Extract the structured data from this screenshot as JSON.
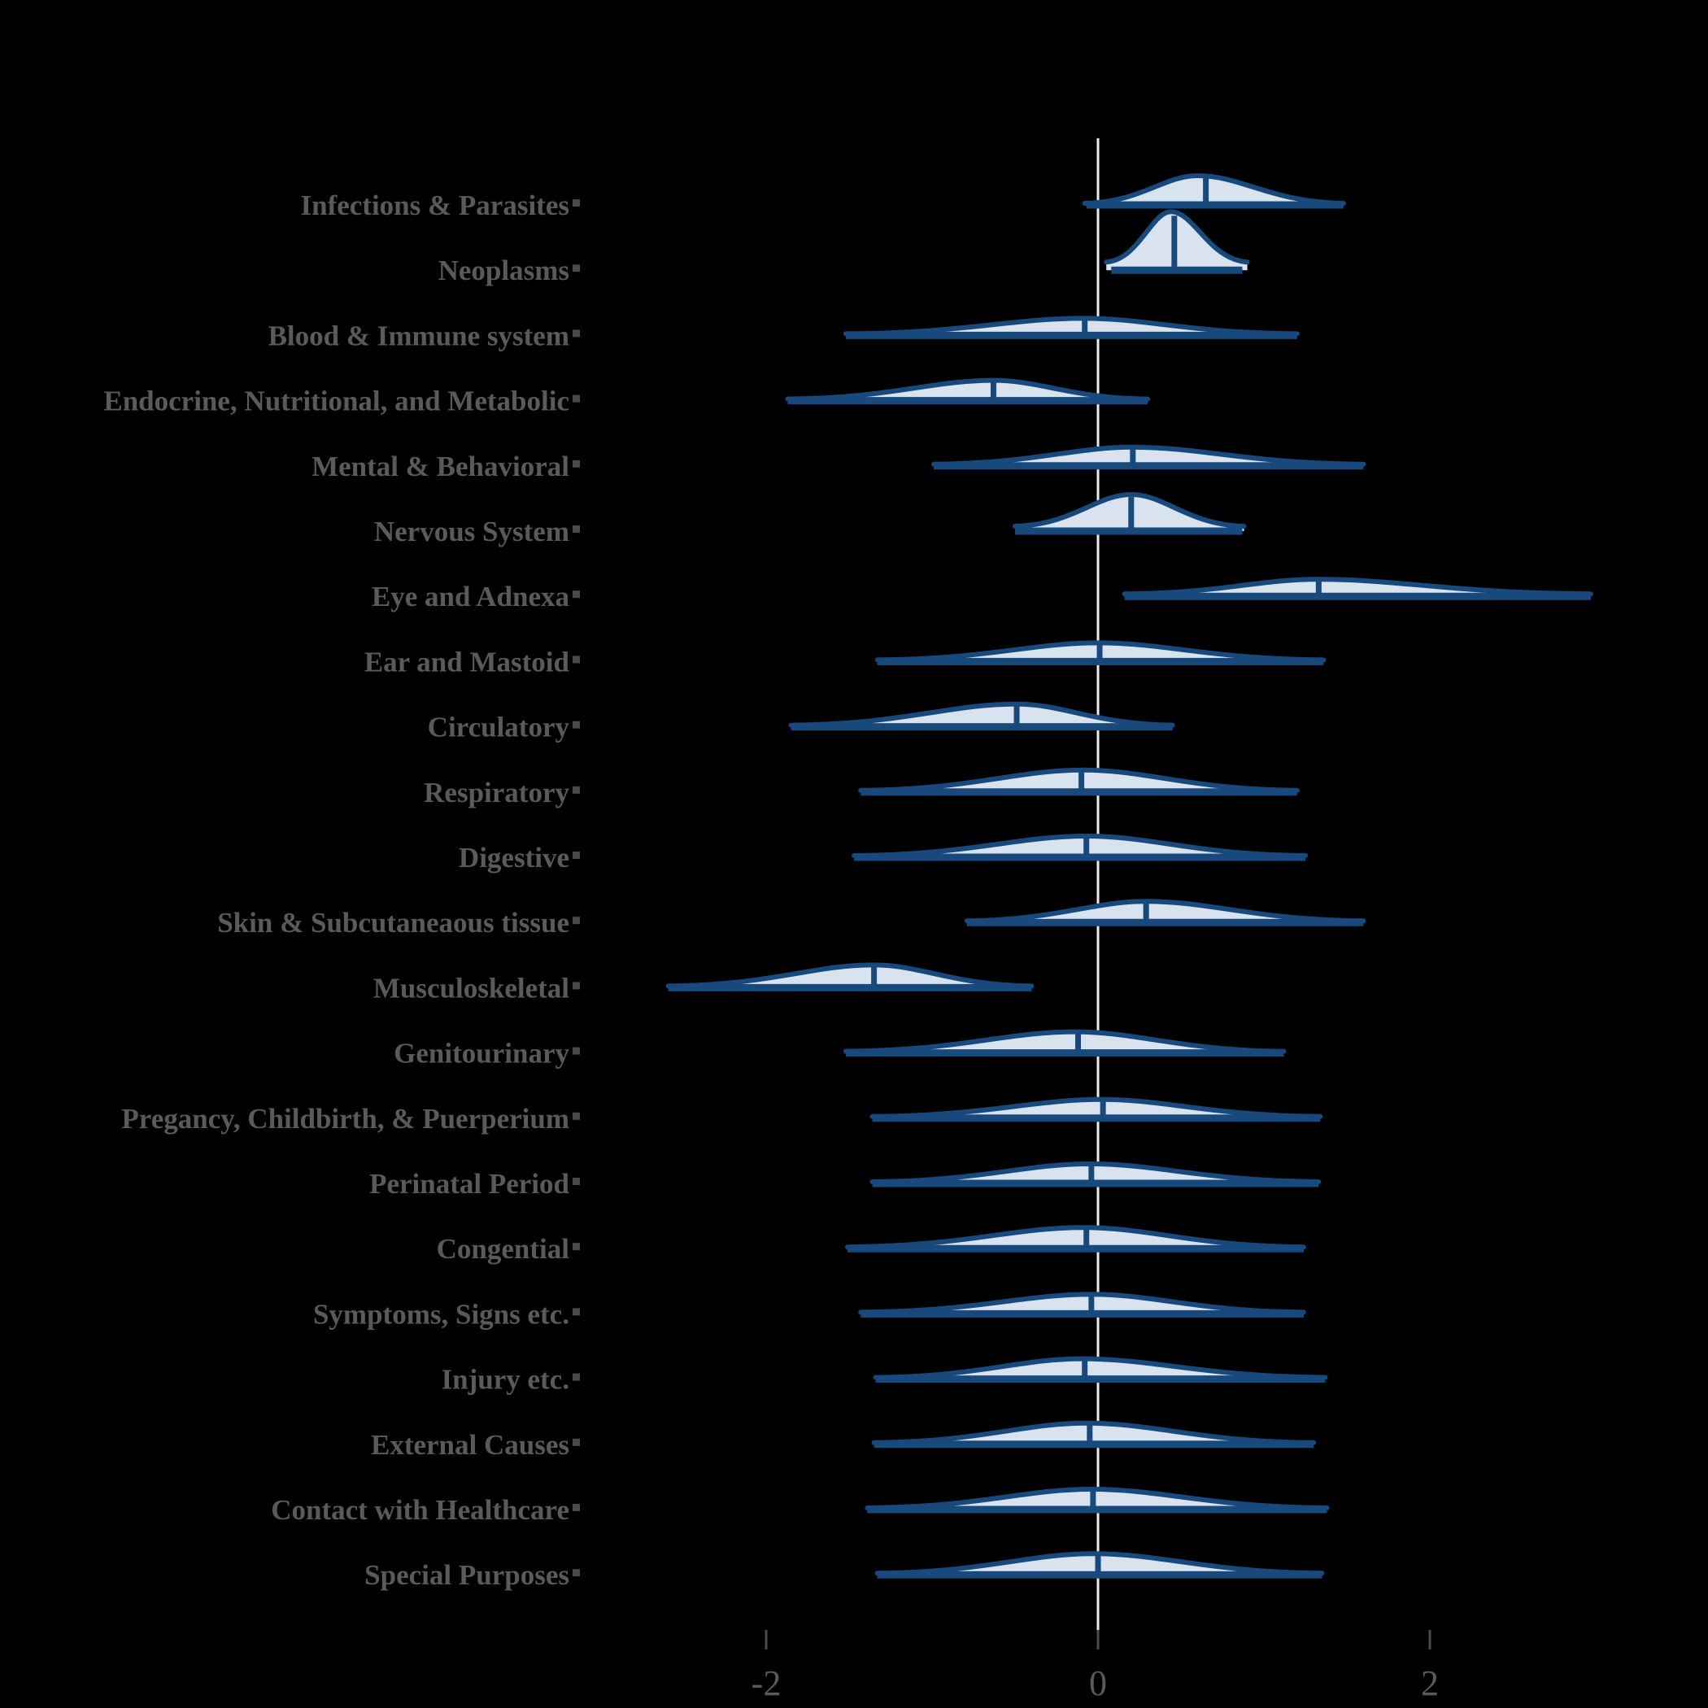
{
  "page": {
    "title": "",
    "background": "#000000"
  },
  "colors": {
    "background": "#000000",
    "violin_fill": "#d9e3ef",
    "violin_stroke": "#17497c",
    "median_line": "#17497c",
    "zero_line": "#ebebeb",
    "label_text": "#5a5a5a",
    "tick_text": "#5a5a5a",
    "tick_mark": "#4d4d4d",
    "category_marker": "#4a4a4a"
  },
  "chart_data": {
    "type": "violin",
    "orientation": "horizontal",
    "title": "",
    "xlabel": "",
    "ylabel": "",
    "x_ticks": [
      "-2",
      "0",
      "2"
    ],
    "x_tick_values": [
      -2,
      0,
      2
    ],
    "x_range": [
      -3.3,
      3.6
    ],
    "zero_reference_line": 0,
    "grid": false,
    "legend": "none",
    "violins": [
      {
        "label": "Infections & Parasites",
        "min": -0.08,
        "mode": 0.6,
        "median": 0.65,
        "max": 1.48,
        "amplitude": 36,
        "tail": 2,
        "bar_min": -0.07,
        "bar_max": 1.48
      },
      {
        "label": "Neoplasms",
        "min": 0.05,
        "mode": 0.44,
        "median": 0.46,
        "max": 0.9,
        "amplitude": 72,
        "tail": 10,
        "bar_min": 0.08,
        "bar_max": 0.87
      },
      {
        "label": "Blood & Immune system",
        "min": -1.52,
        "mode": -0.09,
        "median": -0.08,
        "max": 1.2,
        "amplitude": 21,
        "tail": 2
      },
      {
        "label": "Endocrine, Nutritional, and Metabolic",
        "min": -1.87,
        "mode": -0.63,
        "median": -0.63,
        "max": 0.3,
        "amplitude": 25,
        "tail": 2
      },
      {
        "label": "Mental & Behavioral",
        "min": -0.99,
        "mode": 0.21,
        "median": 0.21,
        "max": 1.6,
        "amplitude": 23,
        "tail": 2
      },
      {
        "label": "Nervous System",
        "min": -0.5,
        "mode": 0.2,
        "median": 0.2,
        "max": 0.88,
        "amplitude": 45,
        "tail": 6,
        "bar_min": -0.5,
        "bar_max": 0.87
      },
      {
        "label": "Eye and Adnexa",
        "min": 0.16,
        "mode": 1.32,
        "median": 1.33,
        "max": 2.97,
        "amplitude": 21,
        "tail": 3
      },
      {
        "label": "Ear and Mastoid",
        "min": -1.33,
        "mode": 0.0,
        "median": 0.01,
        "max": 1.36,
        "amplitude": 23,
        "tail": 2
      },
      {
        "label": "Circulatory",
        "min": -1.85,
        "mode": -0.49,
        "median": -0.49,
        "max": 0.45,
        "amplitude": 28,
        "tail": 2
      },
      {
        "label": "Respiratory",
        "min": -1.43,
        "mode": -0.09,
        "median": -0.1,
        "max": 1.2,
        "amplitude": 27,
        "tail": 2
      },
      {
        "label": "Digestive",
        "min": -1.47,
        "mode": -0.07,
        "median": -0.07,
        "max": 1.25,
        "amplitude": 26,
        "tail": 2
      },
      {
        "label": "Skin & Subcutaneaous tissue",
        "min": -0.79,
        "mode": 0.29,
        "median": 0.29,
        "max": 1.6,
        "amplitude": 26,
        "tail": 2
      },
      {
        "label": "Musculoskeletal",
        "min": -2.59,
        "mode": -1.35,
        "median": -1.35,
        "max": -0.4,
        "amplitude": 28,
        "tail": 2
      },
      {
        "label": "Genitourinary",
        "min": -1.52,
        "mode": -0.14,
        "median": -0.12,
        "max": 1.12,
        "amplitude": 26,
        "tail": 2
      },
      {
        "label": "Pregancy, Childbirth, & Puerperium",
        "min": -1.36,
        "mode": 0.02,
        "median": 0.03,
        "max": 1.34,
        "amplitude": 23,
        "tail": 2
      },
      {
        "label": "Perinatal Period",
        "min": -1.36,
        "mode": -0.05,
        "median": -0.04,
        "max": 1.33,
        "amplitude": 24,
        "tail": 2
      },
      {
        "label": "Congential",
        "min": -1.51,
        "mode": -0.09,
        "median": -0.07,
        "max": 1.24,
        "amplitude": 26,
        "tail": 2
      },
      {
        "label": "Symptoms, Signs etc.",
        "min": -1.43,
        "mode": -0.04,
        "median": -0.04,
        "max": 1.24,
        "amplitude": 24,
        "tail": 2
      },
      {
        "label": "Injury etc.",
        "min": -1.34,
        "mode": -0.1,
        "median": -0.08,
        "max": 1.37,
        "amplitude": 25,
        "tail": 2
      },
      {
        "label": "External Causes",
        "min": -1.35,
        "mode": -0.07,
        "median": -0.05,
        "max": 1.3,
        "amplitude": 26,
        "tail": 2
      },
      {
        "label": "Contact with Healthcare",
        "min": -1.39,
        "mode": -0.04,
        "median": -0.03,
        "max": 1.38,
        "amplitude": 25,
        "tail": 2
      },
      {
        "label": "Special Purposes",
        "min": -1.33,
        "mode": -0.03,
        "median": 0.0,
        "max": 1.35,
        "amplitude": 26,
        "tail": 2
      }
    ]
  }
}
